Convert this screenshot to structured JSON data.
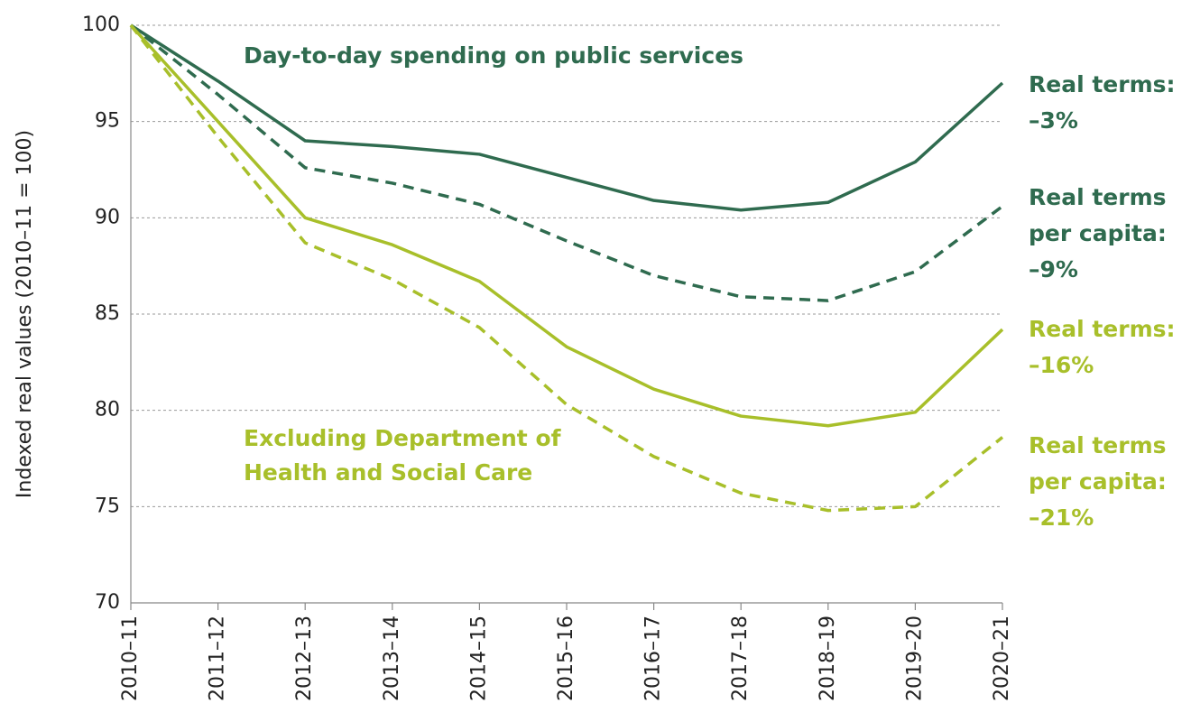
{
  "chart_data": {
    "type": "line",
    "y_label": "Indexed real values (2010–11 = 100)",
    "categories": [
      "2010–11",
      "2011–12",
      "2012–13",
      "2013–14",
      "2014–15",
      "2015–16",
      "2016–17",
      "2017–18",
      "2018–19",
      "2019–20",
      "2020–21"
    ],
    "series": [
      {
        "label": [
          "Real terms:",
          "–3%"
        ],
        "color": "#2f6b4f",
        "dashed": false,
        "values": [
          100,
          97.1,
          94.0,
          93.7,
          93.3,
          92.1,
          90.9,
          90.4,
          90.8,
          92.9,
          97.0
        ]
      },
      {
        "label": [
          "Real terms",
          "per capita:",
          "–9%"
        ],
        "color": "#2f6b4f",
        "dashed": true,
        "values": [
          100,
          96.4,
          92.6,
          91.8,
          90.7,
          88.8,
          87.0,
          85.9,
          85.7,
          87.2,
          90.6
        ]
      },
      {
        "label": [
          "Real terms:",
          "–16%"
        ],
        "color": "#a8bf2a",
        "dashed": false,
        "values": [
          100,
          95.0,
          90.0,
          88.6,
          86.7,
          83.3,
          81.1,
          79.7,
          79.2,
          79.9,
          84.2
        ]
      },
      {
        "label": [
          "Real terms",
          "per capita:",
          "–21%"
        ],
        "color": "#a8bf2a",
        "dashed": true,
        "values": [
          100,
          94.2,
          88.7,
          86.8,
          84.3,
          80.3,
          77.6,
          75.7,
          74.8,
          75.0,
          78.6
        ]
      }
    ],
    "annotations": [
      {
        "lines": [
          "Day-to-day spending on public services"
        ],
        "color": "#2f6b4f"
      },
      {
        "lines": [
          "Excluding Department of",
          "Health and Social Care"
        ],
        "color": "#a8bf2a"
      }
    ],
    "ylim": [
      70,
      100
    ],
    "yticks": [
      70,
      75,
      80,
      85,
      90,
      95,
      100
    ],
    "grid": true
  }
}
